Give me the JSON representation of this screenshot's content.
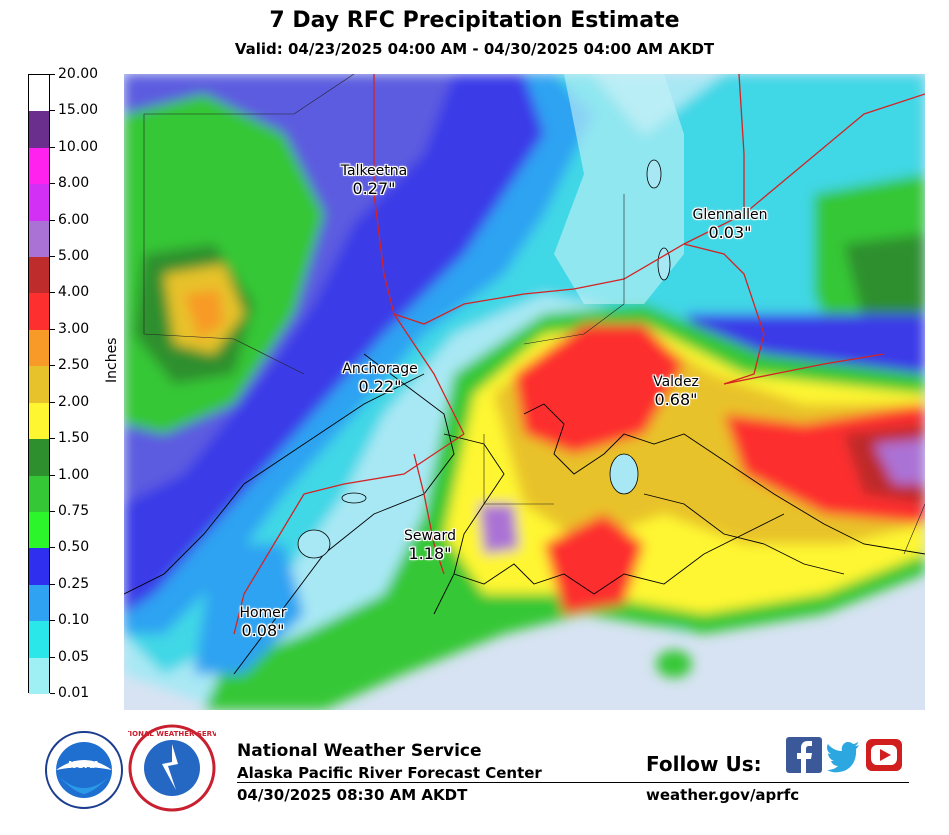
{
  "header": {
    "title": "7 Day RFC Precipitation Estimate",
    "valid": "Valid: 04/23/2025 04:00 AM - 04/30/2025 04:00 AM AKDT"
  },
  "legend": {
    "unit": "Inches",
    "levels": [
      {
        "label": "20.00",
        "color": "#ffffff"
      },
      {
        "label": "15.00",
        "color": "#6a2e8c"
      },
      {
        "label": "10.00",
        "color": "#ff22ee"
      },
      {
        "label": "8.00",
        "color": "#d230f5"
      },
      {
        "label": "6.00",
        "color": "#ab72d6"
      },
      {
        "label": "5.00",
        "color": "#be2c2c"
      },
      {
        "label": "4.00",
        "color": "#fd2f2f"
      },
      {
        "label": "3.00",
        "color": "#f89a28"
      },
      {
        "label": "2.50",
        "color": "#e8c22b"
      },
      {
        "label": "2.00",
        "color": "#fef630"
      },
      {
        "label": "1.50",
        "color": "#2d8f2d"
      },
      {
        "label": "1.00",
        "color": "#36c736"
      },
      {
        "label": "0.75",
        "color": "#2cf52c"
      },
      {
        "label": "0.50",
        "color": "#2f2ff0"
      },
      {
        "label": "0.25",
        "color": "#2fa3f2"
      },
      {
        "label": "0.10",
        "color": "#2ae8ea"
      },
      {
        "label": "0.05",
        "color": "#9ff0f4"
      },
      {
        "label": "0.01",
        "color": ""
      }
    ]
  },
  "cities": [
    {
      "name": "Talkeetna",
      "value": "0.27\""
    },
    {
      "name": "Glennallen",
      "value": "0.03\""
    },
    {
      "name": "Anchorage",
      "value": "0.22\""
    },
    {
      "name": "Valdez",
      "value": "0.68\""
    },
    {
      "name": "Seward",
      "value": "1.18\""
    },
    {
      "name": "Homer",
      "value": "0.08\""
    }
  ],
  "footer": {
    "org": "National Weather Service",
    "center": "Alaska Pacific River Forecast Center",
    "issued": "04/30/2025 08:30 AM AKDT",
    "follow": "Follow Us:",
    "site": "weather.gov/aprfc",
    "noaa_logo_text": "NOAA",
    "nws_logo_text": "NATIONAL WEATHER SERVICE"
  },
  "social": [
    "facebook-icon",
    "twitter-icon",
    "youtube-icon"
  ]
}
